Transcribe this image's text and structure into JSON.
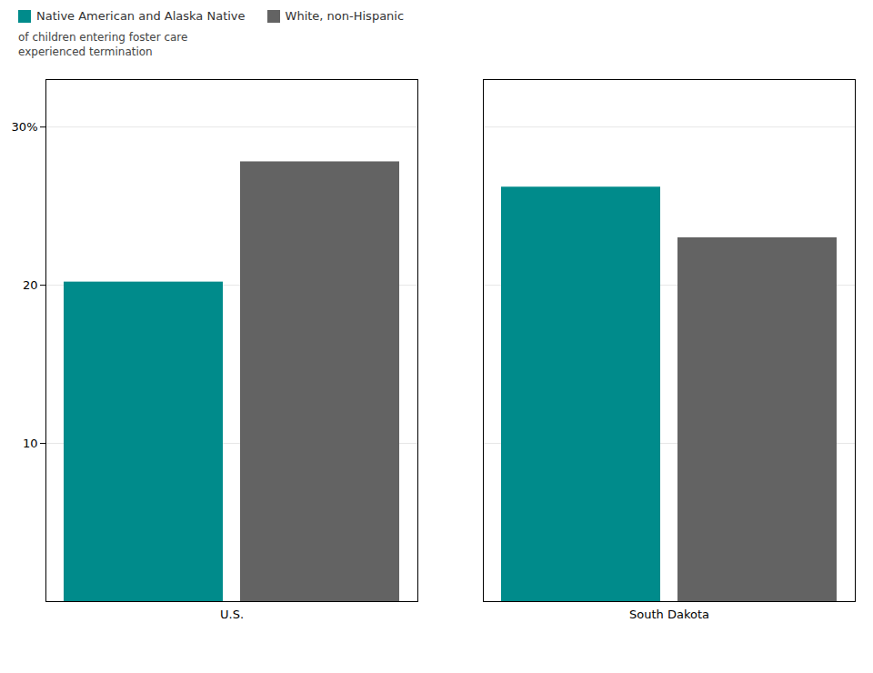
{
  "chart_data": {
    "type": "bar",
    "categories": [
      "U.S.",
      "South Dakota"
    ],
    "series": [
      {
        "name": "Native American and Alaska Native",
        "color": "#008B8B",
        "values": [
          20.2,
          26.2
        ]
      },
      {
        "name": "White, non-Hispanic",
        "color": "#636363",
        "values": [
          27.8,
          23.0
        ]
      }
    ],
    "ylim": [
      0,
      33
    ],
    "yticks": [
      10,
      20,
      {
        "value": 30,
        "label": "30%"
      }
    ],
    "grid": true,
    "legend": "upper left",
    "annotations": [
      "of children entering foster care",
      "experienced termination"
    ]
  }
}
